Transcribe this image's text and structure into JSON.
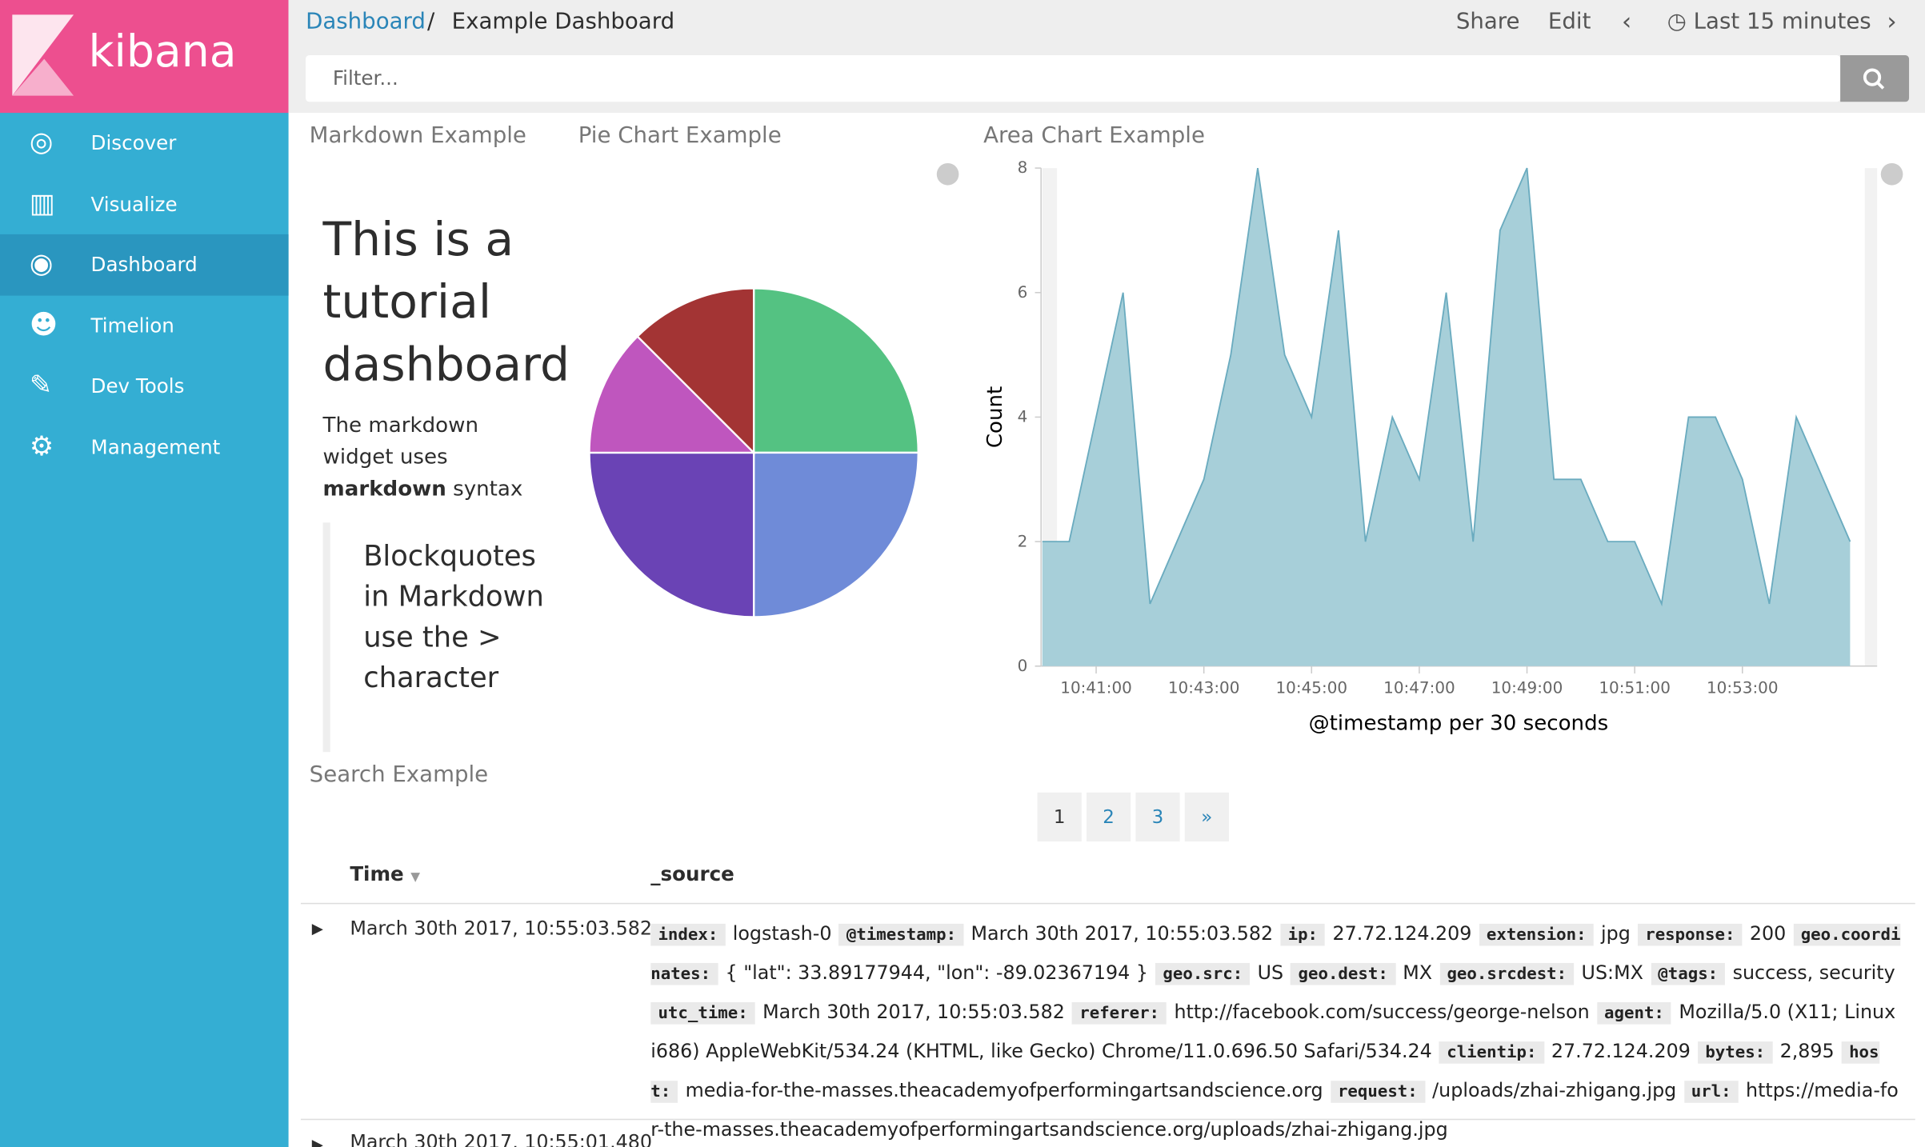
{
  "app": {
    "brand": "kibana",
    "nav": [
      "Discover",
      "Visualize",
      "Dashboard",
      "Timelion",
      "Dev Tools",
      "Management"
    ],
    "active_nav": 2
  },
  "header": {
    "breadcrumb_root": "Dashboard",
    "breadcrumb_sep": "/",
    "title": "Example Dashboard",
    "actions": [
      "Share",
      "Edit"
    ],
    "time_range": "Last 15 minutes",
    "filter_placeholder": "Filter..."
  },
  "panels": {
    "markdown_title": "Markdown Example",
    "pie_title": "Pie Chart Example",
    "area_title": "Area Chart Example",
    "search_title": "Search Example"
  },
  "markdown": {
    "heading": "This is a tutorial dashboard",
    "para_before": "The markdown widget uses ",
    "para_bold": "markdown",
    "para_after": " syntax",
    "blockquote": "Blockquotes in Markdown use the > character"
  },
  "chart_data": [
    {
      "type": "pie",
      "values": [
        2,
        2,
        2,
        1,
        1
      ],
      "colors": [
        "#54c282",
        "#6f8bd8",
        "#6a43b5",
        "#bf56be",
        "#a33434"
      ]
    },
    {
      "type": "area",
      "color": "#a7cfd9",
      "line_color": "#6aabbf",
      "x_label": "@timestamp per 30 seconds",
      "y_label": "Count",
      "categories": [
        null,
        null,
        "10:41:00",
        null,
        null,
        null,
        "10:43:00",
        null,
        null,
        null,
        "10:45:00",
        null,
        null,
        null,
        "10:47:00",
        null,
        null,
        null,
        "10:49:00",
        null,
        null,
        null,
        "10:51:00",
        null,
        null,
        null,
        "10:53:00",
        null,
        null,
        null,
        null
      ],
      "values": [
        2,
        2,
        4,
        6,
        1,
        2,
        3,
        5,
        8,
        5,
        4,
        7,
        2,
        4,
        3,
        6,
        2,
        7,
        8,
        3,
        3,
        2,
        2,
        1,
        4,
        4,
        3,
        1,
        4,
        3,
        2
      ],
      "ylim": [
        0,
        8
      ],
      "yticks": [
        0,
        2,
        4,
        6,
        8
      ]
    }
  ],
  "pagination": [
    "1",
    "2",
    "3",
    "»"
  ],
  "table": {
    "columns": [
      "Time",
      "_source"
    ],
    "rows": [
      {
        "time": "March 30th 2017, 10:55:03.582",
        "source": [
          [
            "index:",
            "logstash-0"
          ],
          [
            "@timestamp:",
            "March 30th 2017, 10:55:03.582"
          ],
          [
            "ip:",
            "27.72.124.209"
          ],
          [
            "extension:",
            "jpg"
          ],
          [
            "response:",
            "200"
          ],
          [
            "geo.coordinates:",
            "{ \"lat\": 33.89177944, \"lon\": -89.02367194 }"
          ],
          [
            "geo.src:",
            "US"
          ],
          [
            "geo.dest:",
            "MX"
          ],
          [
            "geo.srcdest:",
            "US:MX"
          ],
          [
            "@tags:",
            "success, security"
          ],
          [
            "utc_time:",
            "March 30th 2017, 10:55:03.582"
          ],
          [
            "referer:",
            "http://facebook.com/success/george-nelson"
          ],
          [
            "agent:",
            "Mozilla/5.0 (X11; Linux i686) AppleWebKit/534.24 (KHTML, like Gecko) Chrome/11.0.696.50 Safari/534.24"
          ],
          [
            "clientip:",
            "27.72.124.209"
          ],
          [
            "bytes:",
            "2,895"
          ],
          [
            "host:",
            "media-for-the-masses.theacademyofperformingartsandscience.org"
          ],
          [
            "request:",
            "/uploads/zhai-zhigang.jpg"
          ],
          [
            "url:",
            "https://media-for-the-masses.theacademyofperformingartsandscience.org/uploads/zhai-zhigang.jpg"
          ]
        ]
      },
      {
        "time": "March 30th 2017, 10:55:01.480"
      }
    ]
  }
}
